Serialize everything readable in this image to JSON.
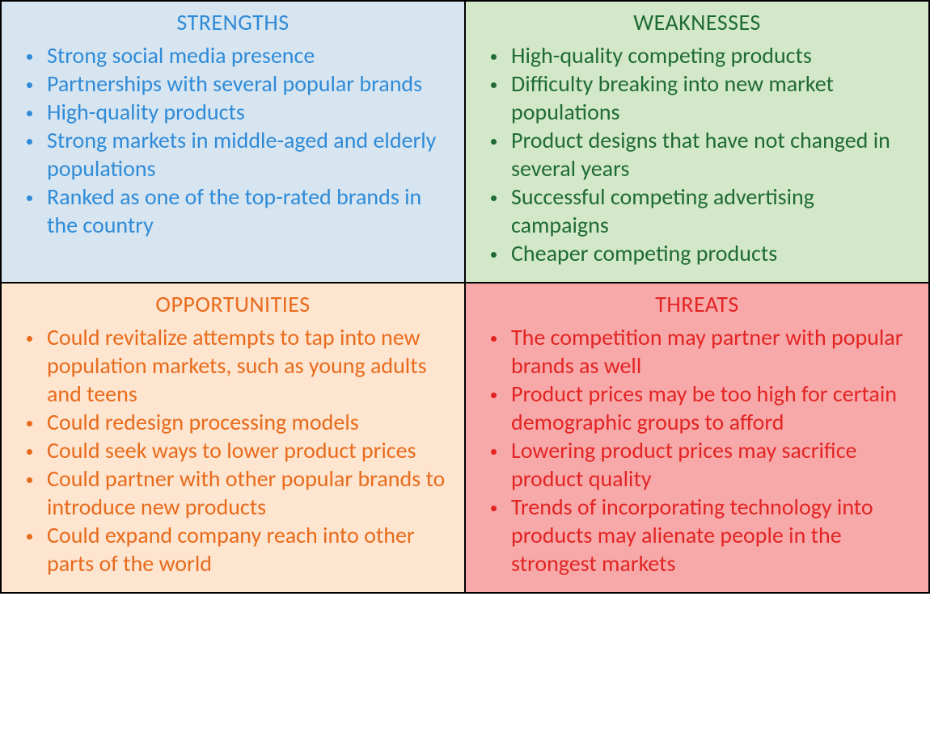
{
  "swot": {
    "type": "infographic",
    "grid": {
      "rows": 2,
      "cols": 2
    },
    "border_color": "#000000",
    "font_family": "Calibri",
    "title_fontsize": 28,
    "item_fontsize": 28,
    "quadrants": [
      {
        "key": "strengths",
        "title": "STRENGTHS",
        "background_color": "#d7e5f0",
        "text_color": "#2f8bd8",
        "bullet_color": "#2f8bd8",
        "items": [
          "Strong social media presence",
          "Partnerships with several popular brands",
          "High-quality products",
          "Strong markets in middle-aged and elderly populations",
          "Ranked as one of the top-rated brands in the country"
        ]
      },
      {
        "key": "weaknesses",
        "title": "WEAKNESSES",
        "background_color": "#d3e8c9",
        "text_color": "#1f6b34",
        "bullet_color": "#1f6b34",
        "items": [
          "High-quality competing products",
          "Difficulty breaking into new market populations",
          "Product designs that have not changed in several years",
          "Successful competing advertising campaigns",
          "Cheaper competing products"
        ]
      },
      {
        "key": "opportunities",
        "title": "OPPORTUNITIES",
        "background_color": "#fde5d0",
        "text_color": "#e86b1c",
        "bullet_color": "#e86b1c",
        "items": [
          "Could revitalize attempts to tap into new population markets, such as young adults and teens",
          "Could redesign processing models",
          "Could seek ways to lower product prices",
          "Could partner with other popular brands to introduce new products",
          "Could expand company reach into other parts of the world"
        ]
      },
      {
        "key": "threats",
        "title": "THREATS",
        "background_color": "#f7a9a9",
        "text_color": "#e32424",
        "bullet_color": "#e32424",
        "items": [
          "The competition may partner with popular brands as well",
          "Product prices may be too high for certain demographic groups to afford",
          "Lowering product prices may sacrifice product quality",
          "Trends of incorporating technology into products may alienate people in the strongest markets"
        ]
      }
    ]
  }
}
